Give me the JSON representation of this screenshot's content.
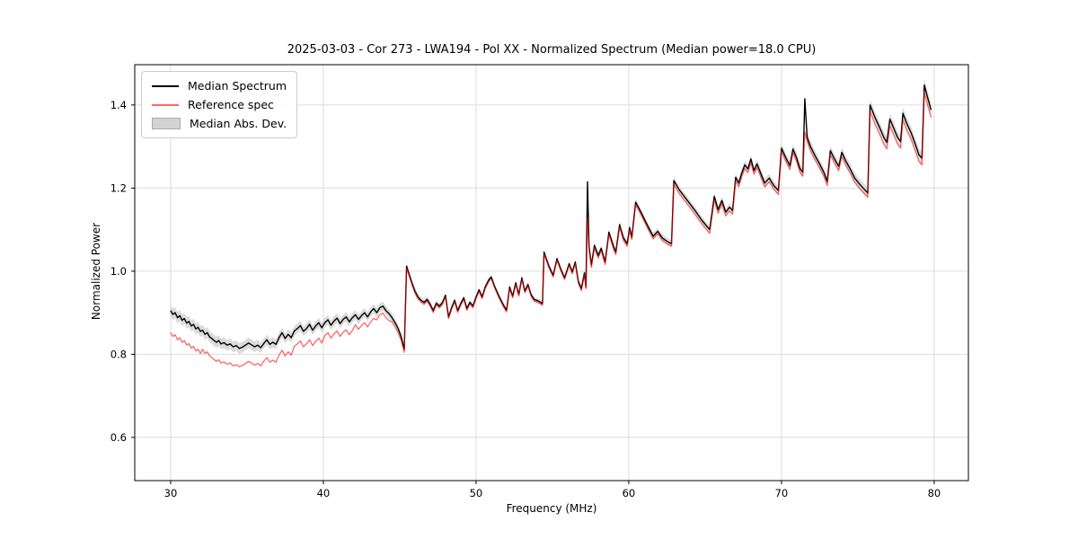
{
  "chart_data": {
    "type": "line",
    "title": "2025-03-03 - Cor 273 - LWA194 - Pol XX - Normalized Spectrum (Median power=18.0 CPU)",
    "xlabel": "Frequency (MHz)",
    "ylabel": "Normalized Power",
    "x_tick_values": [
      30,
      40,
      50,
      60,
      70,
      80
    ],
    "x_tick_labels": [
      "30",
      "40",
      "50",
      "60",
      "70",
      "80"
    ],
    "y_tick_values": [
      0.6,
      0.8,
      1.0,
      1.2,
      1.4
    ],
    "y_tick_labels": [
      "0.6",
      "0.8",
      "1.0",
      "1.2",
      "1.4"
    ],
    "xlim": [
      27.65,
      82.24
    ],
    "ylim": [
      0.496,
      1.497
    ],
    "grid": true,
    "legend_position": "upper left",
    "legend_entries": [
      {
        "label": "Median Spectrum",
        "swatch": "line",
        "color": "#000000"
      },
      {
        "label": "Reference spec",
        "swatch": "line",
        "color": "#ff6666"
      },
      {
        "label": "Median Abs. Dev.",
        "swatch": "patch",
        "color": "#d3d3d3"
      }
    ],
    "style": {
      "grid_color": "#dcdcdc",
      "frame_color": "#000000",
      "median_color": "#000000",
      "reference_color": "#ff0000",
      "reference_opacity": 0.6,
      "band_color": "#bdbdbd",
      "band_opacity": 0.55
    },
    "notes": "columns of points are [frequency_MHz, median_spectrum, reference_spec]; spikes at 57.3 and 71.53 MHz",
    "mad_band_halfwidth": [
      [
        30,
        0.014
      ],
      [
        34,
        0.013
      ],
      [
        38,
        0.012
      ],
      [
        44,
        0.011
      ],
      [
        45.5,
        0.009
      ],
      [
        48,
        0.007
      ],
      [
        52,
        0.006
      ],
      [
        56.5,
        0.006
      ],
      [
        57.3,
        0.013
      ],
      [
        58.2,
        0.007
      ],
      [
        60,
        0.008
      ],
      [
        63,
        0.009
      ],
      [
        66,
        0.009
      ],
      [
        68,
        0.01
      ],
      [
        70.5,
        0.011
      ],
      [
        71.53,
        0.014
      ],
      [
        72.5,
        0.011
      ],
      [
        75,
        0.013
      ],
      [
        77,
        0.014
      ],
      [
        79.35,
        0.016
      ],
      [
        80,
        0.016
      ]
    ],
    "points": [
      [
        30.0,
        0.905,
        0.852
      ],
      [
        30.15,
        0.896,
        0.843
      ],
      [
        30.3,
        0.9,
        0.847
      ],
      [
        30.45,
        0.888,
        0.835
      ],
      [
        30.6,
        0.893,
        0.84
      ],
      [
        30.75,
        0.882,
        0.829
      ],
      [
        30.9,
        0.886,
        0.833
      ],
      [
        31.05,
        0.875,
        0.822
      ],
      [
        31.2,
        0.879,
        0.826
      ],
      [
        31.35,
        0.868,
        0.815
      ],
      [
        31.5,
        0.872,
        0.819
      ],
      [
        31.65,
        0.861,
        0.808
      ],
      [
        31.8,
        0.865,
        0.812
      ],
      [
        31.95,
        0.855,
        0.802
      ],
      [
        32.1,
        0.858,
        0.812
      ],
      [
        32.25,
        0.848,
        0.802
      ],
      [
        32.4,
        0.852,
        0.806
      ],
      [
        32.55,
        0.842,
        0.796
      ],
      [
        32.7,
        0.838,
        0.792
      ],
      [
        32.85,
        0.833,
        0.787
      ],
      [
        33.0,
        0.829,
        0.783
      ],
      [
        33.15,
        0.833,
        0.787
      ],
      [
        33.3,
        0.825,
        0.779
      ],
      [
        33.5,
        0.828,
        0.782
      ],
      [
        33.7,
        0.822,
        0.776
      ],
      [
        33.9,
        0.825,
        0.779
      ],
      [
        34.1,
        0.818,
        0.772
      ],
      [
        34.3,
        0.821,
        0.775
      ],
      [
        34.5,
        0.814,
        0.77
      ],
      [
        34.7,
        0.817,
        0.773
      ],
      [
        34.9,
        0.822,
        0.778
      ],
      [
        35.1,
        0.827,
        0.783
      ],
      [
        35.3,
        0.823,
        0.779
      ],
      [
        35.5,
        0.818,
        0.774
      ],
      [
        35.7,
        0.822,
        0.778
      ],
      [
        35.9,
        0.816,
        0.772
      ],
      [
        36.1,
        0.826,
        0.783
      ],
      [
        36.3,
        0.835,
        0.792
      ],
      [
        36.5,
        0.824,
        0.781
      ],
      [
        36.7,
        0.829,
        0.786
      ],
      [
        36.9,
        0.824,
        0.781
      ],
      [
        37.1,
        0.84,
        0.798
      ],
      [
        37.3,
        0.852,
        0.81
      ],
      [
        37.5,
        0.838,
        0.796
      ],
      [
        37.7,
        0.848,
        0.806
      ],
      [
        37.9,
        0.84,
        0.798
      ],
      [
        38.1,
        0.856,
        0.819
      ],
      [
        38.3,
        0.862,
        0.825
      ],
      [
        38.5,
        0.869,
        0.832
      ],
      [
        38.7,
        0.855,
        0.818
      ],
      [
        38.9,
        0.862,
        0.825
      ],
      [
        39.1,
        0.872,
        0.835
      ],
      [
        39.3,
        0.858,
        0.821
      ],
      [
        39.5,
        0.868,
        0.831
      ],
      [
        39.7,
        0.876,
        0.839
      ],
      [
        39.9,
        0.864,
        0.827
      ],
      [
        40.1,
        0.876,
        0.845
      ],
      [
        40.3,
        0.883,
        0.852
      ],
      [
        40.5,
        0.87,
        0.839
      ],
      [
        40.7,
        0.88,
        0.849
      ],
      [
        40.9,
        0.887,
        0.856
      ],
      [
        41.1,
        0.874,
        0.843
      ],
      [
        41.3,
        0.884,
        0.853
      ],
      [
        41.5,
        0.89,
        0.859
      ],
      [
        41.7,
        0.878,
        0.847
      ],
      [
        41.9,
        0.888,
        0.857
      ],
      [
        42.1,
        0.895,
        0.871
      ],
      [
        42.3,
        0.884,
        0.86
      ],
      [
        42.5,
        0.893,
        0.869
      ],
      [
        42.7,
        0.9,
        0.876
      ],
      [
        42.9,
        0.89,
        0.866
      ],
      [
        43.1,
        0.902,
        0.878
      ],
      [
        43.3,
        0.91,
        0.886
      ],
      [
        43.5,
        0.9,
        0.883
      ],
      [
        43.7,
        0.912,
        0.895
      ],
      [
        43.9,
        0.916,
        0.899
      ],
      [
        44.1,
        0.905,
        0.888
      ],
      [
        44.3,
        0.898,
        0.881
      ],
      [
        44.5,
        0.888,
        0.878
      ],
      [
        44.7,
        0.876,
        0.866
      ],
      [
        44.9,
        0.862,
        0.852
      ],
      [
        45.1,
        0.842,
        0.833
      ],
      [
        45.3,
        0.812,
        0.805
      ],
      [
        45.45,
        1.012,
        1.007
      ],
      [
        45.6,
        0.995,
        0.991
      ],
      [
        45.8,
        0.972,
        0.968
      ],
      [
        46.0,
        0.952,
        0.948
      ],
      [
        46.2,
        0.938,
        0.934
      ],
      [
        46.4,
        0.93,
        0.926
      ],
      [
        46.6,
        0.925,
        0.921
      ],
      [
        46.8,
        0.932,
        0.928
      ],
      [
        47.0,
        0.92,
        0.916
      ],
      [
        47.2,
        0.905,
        0.901
      ],
      [
        47.4,
        0.923,
        0.919
      ],
      [
        47.6,
        0.916,
        0.912
      ],
      [
        47.8,
        0.924,
        0.92
      ],
      [
        48.0,
        0.942,
        0.938
      ],
      [
        48.2,
        0.89,
        0.886
      ],
      [
        48.4,
        0.912,
        0.908
      ],
      [
        48.6,
        0.93,
        0.926
      ],
      [
        48.8,
        0.905,
        0.901
      ],
      [
        49.0,
        0.922,
        0.918
      ],
      [
        49.2,
        0.936,
        0.932
      ],
      [
        49.4,
        0.91,
        0.906
      ],
      [
        49.6,
        0.925,
        0.921
      ],
      [
        49.8,
        0.916,
        0.912
      ],
      [
        50.0,
        0.938,
        0.934
      ],
      [
        50.2,
        0.955,
        0.951
      ],
      [
        50.4,
        0.938,
        0.934
      ],
      [
        50.6,
        0.962,
        0.958
      ],
      [
        50.85,
        0.98,
        0.976
      ],
      [
        51.0,
        0.986,
        0.982
      ],
      [
        51.2,
        0.965,
        0.961
      ],
      [
        51.5,
        0.94,
        0.936
      ],
      [
        51.8,
        0.918,
        0.914
      ],
      [
        52.0,
        0.906,
        0.902
      ],
      [
        52.2,
        0.962,
        0.958
      ],
      [
        52.4,
        0.94,
        0.936
      ],
      [
        52.6,
        0.972,
        0.968
      ],
      [
        52.8,
        0.944,
        0.94
      ],
      [
        53.0,
        0.984,
        0.98
      ],
      [
        53.2,
        0.952,
        0.948
      ],
      [
        53.4,
        0.968,
        0.964
      ],
      [
        53.6,
        0.944,
        0.94
      ],
      [
        53.8,
        0.932,
        0.928
      ],
      [
        54.1,
        0.928,
        0.924
      ],
      [
        54.35,
        0.922,
        0.918
      ],
      [
        54.45,
        1.046,
        1.042
      ],
      [
        54.75,
        1.014,
        1.01
      ],
      [
        55.05,
        0.99,
        0.986
      ],
      [
        55.3,
        1.03,
        1.026
      ],
      [
        55.55,
        1.005,
        1.001
      ],
      [
        55.8,
        0.984,
        0.98
      ],
      [
        56.1,
        1.018,
        1.014
      ],
      [
        56.3,
        0.998,
        0.994
      ],
      [
        56.5,
        1.022,
        1.018
      ],
      [
        56.7,
        0.975,
        0.971
      ],
      [
        56.9,
        0.958,
        0.954
      ],
      [
        57.1,
        0.996,
        0.992
      ],
      [
        57.2,
        0.962,
        0.958
      ],
      [
        57.3,
        1.215,
        1.128
      ],
      [
        57.4,
        1.06,
        1.054
      ],
      [
        57.55,
        1.015,
        1.009
      ],
      [
        57.75,
        1.062,
        1.056
      ],
      [
        58.0,
        1.038,
        1.032
      ],
      [
        58.2,
        1.055,
        1.049
      ],
      [
        58.45,
        1.022,
        1.016
      ],
      [
        58.7,
        1.094,
        1.088
      ],
      [
        59.0,
        1.06,
        1.054
      ],
      [
        59.15,
        1.046,
        1.04
      ],
      [
        59.4,
        1.112,
        1.106
      ],
      [
        59.65,
        1.08,
        1.074
      ],
      [
        59.9,
        1.066,
        1.06
      ],
      [
        60.05,
        1.105,
        1.099
      ],
      [
        60.2,
        1.082,
        1.076
      ],
      [
        60.45,
        1.166,
        1.16
      ],
      [
        60.8,
        1.142,
        1.136
      ],
      [
        61.2,
        1.112,
        1.106
      ],
      [
        61.6,
        1.084,
        1.078
      ],
      [
        61.9,
        1.096,
        1.09
      ],
      [
        62.2,
        1.08,
        1.074
      ],
      [
        62.5,
        1.072,
        1.066
      ],
      [
        62.8,
        1.066,
        1.06
      ],
      [
        62.95,
        1.218,
        1.209
      ],
      [
        63.3,
        1.196,
        1.187
      ],
      [
        63.8,
        1.172,
        1.163
      ],
      [
        64.3,
        1.148,
        1.139
      ],
      [
        64.8,
        1.122,
        1.113
      ],
      [
        65.3,
        1.1,
        1.091
      ],
      [
        65.6,
        1.18,
        1.171
      ],
      [
        65.85,
        1.148,
        1.139
      ],
      [
        66.1,
        1.17,
        1.161
      ],
      [
        66.35,
        1.142,
        1.133
      ],
      [
        66.6,
        1.154,
        1.145
      ],
      [
        66.8,
        1.146,
        1.137
      ],
      [
        67.0,
        1.226,
        1.217
      ],
      [
        67.2,
        1.212,
        1.203
      ],
      [
        67.4,
        1.236,
        1.227
      ],
      [
        67.6,
        1.256,
        1.247
      ],
      [
        67.8,
        1.246,
        1.237
      ],
      [
        68.0,
        1.27,
        1.261
      ],
      [
        68.2,
        1.242,
        1.233
      ],
      [
        68.4,
        1.258,
        1.249
      ],
      [
        68.65,
        1.235,
        1.226
      ],
      [
        68.9,
        1.212,
        1.203
      ],
      [
        69.2,
        1.224,
        1.215
      ],
      [
        69.5,
        1.206,
        1.197
      ],
      [
        69.8,
        1.194,
        1.185
      ],
      [
        70.0,
        1.296,
        1.287
      ],
      [
        70.3,
        1.272,
        1.263
      ],
      [
        70.55,
        1.254,
        1.245
      ],
      [
        70.75,
        1.294,
        1.285
      ],
      [
        71.0,
        1.272,
        1.263
      ],
      [
        71.2,
        1.248,
        1.239
      ],
      [
        71.4,
        1.238,
        1.229
      ],
      [
        71.53,
        1.415,
        1.335
      ],
      [
        71.68,
        1.322,
        1.312
      ],
      [
        71.9,
        1.3,
        1.29
      ],
      [
        72.2,
        1.278,
        1.268
      ],
      [
        72.5,
        1.258,
        1.248
      ],
      [
        72.8,
        1.236,
        1.226
      ],
      [
        73.0,
        1.216,
        1.206
      ],
      [
        73.2,
        1.29,
        1.28
      ],
      [
        73.5,
        1.268,
        1.258
      ],
      [
        73.75,
        1.252,
        1.242
      ],
      [
        73.95,
        1.286,
        1.276
      ],
      [
        74.2,
        1.266,
        1.256
      ],
      [
        74.5,
        1.246,
        1.236
      ],
      [
        74.8,
        1.224,
        1.214
      ],
      [
        75.1,
        1.21,
        1.2
      ],
      [
        75.4,
        1.198,
        1.188
      ],
      [
        75.65,
        1.188,
        1.178
      ],
      [
        75.8,
        1.4,
        1.384
      ],
      [
        76.1,
        1.372,
        1.356
      ],
      [
        76.4,
        1.348,
        1.332
      ],
      [
        76.7,
        1.322,
        1.306
      ],
      [
        76.9,
        1.31,
        1.294
      ],
      [
        77.1,
        1.366,
        1.35
      ],
      [
        77.35,
        1.344,
        1.328
      ],
      [
        77.6,
        1.322,
        1.306
      ],
      [
        77.8,
        1.312,
        1.296
      ],
      [
        77.95,
        1.38,
        1.364
      ],
      [
        78.2,
        1.356,
        1.34
      ],
      [
        78.5,
        1.332,
        1.316
      ],
      [
        78.8,
        1.302,
        1.286
      ],
      [
        79.0,
        1.28,
        1.264
      ],
      [
        79.2,
        1.272,
        1.256
      ],
      [
        79.35,
        1.448,
        1.43
      ],
      [
        79.55,
        1.42,
        1.402
      ],
      [
        79.8,
        1.388,
        1.37
      ]
    ]
  }
}
